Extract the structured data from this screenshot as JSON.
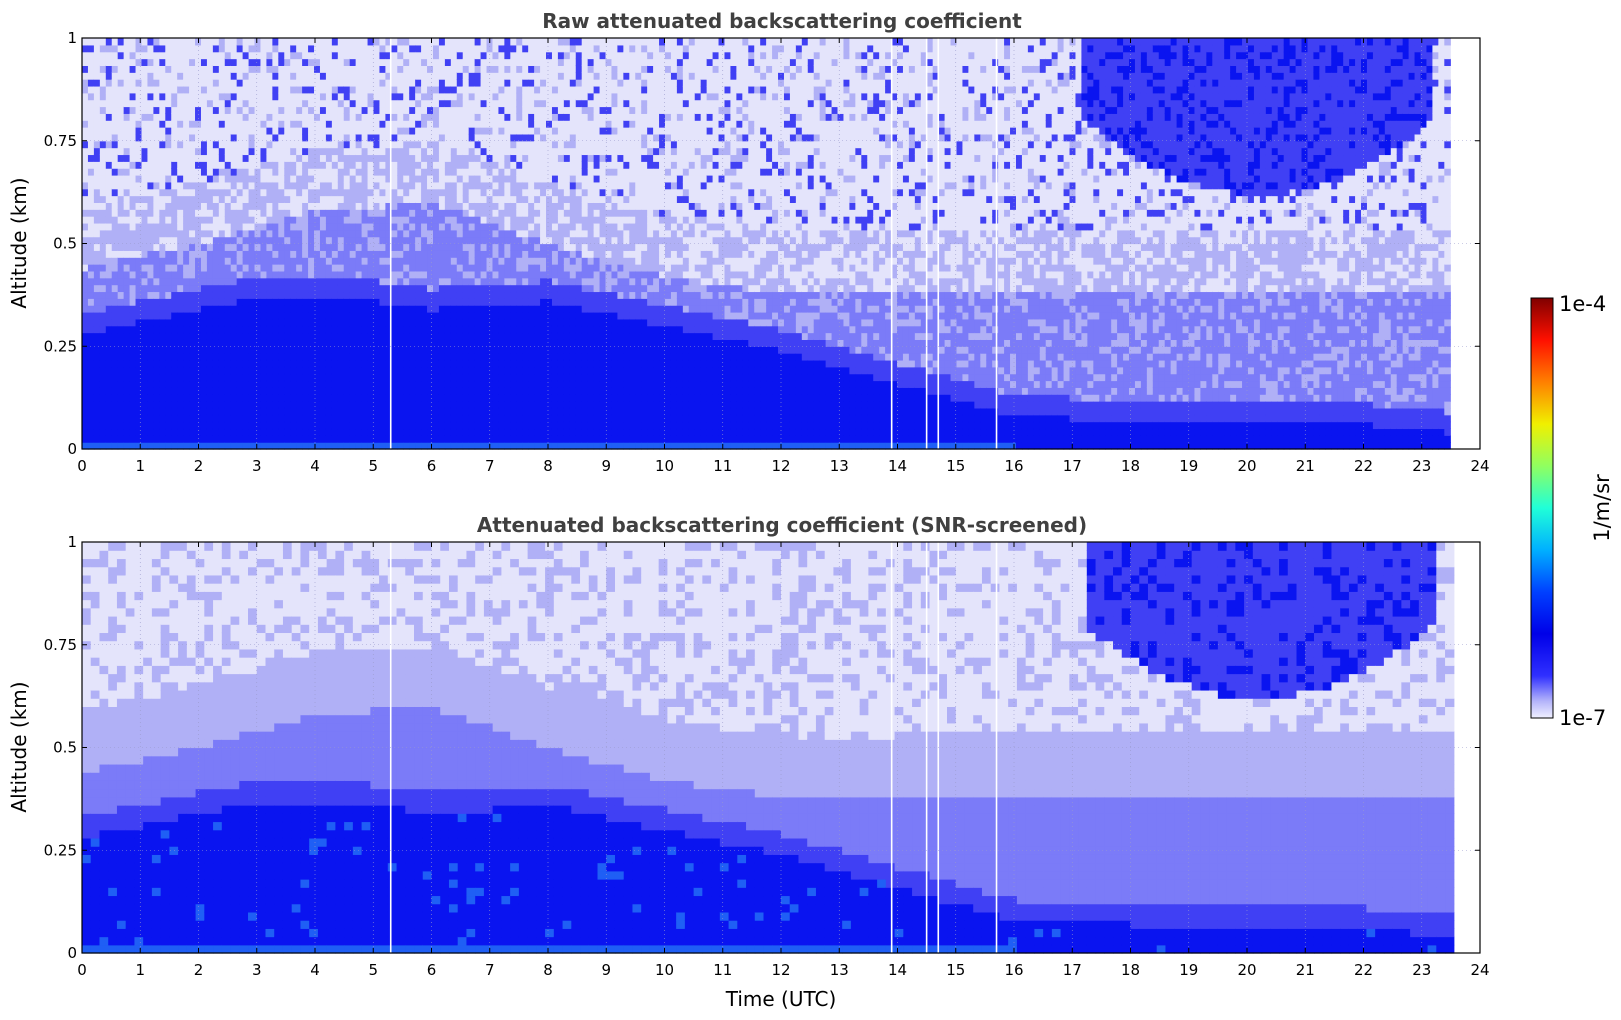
{
  "chart_data": [
    {
      "type": "heatmap",
      "title": "Raw attenuated backscattering coefficient",
      "xlabel": "",
      "ylabel": "Altitude (km)",
      "xlim": [
        0,
        24
      ],
      "ylim": [
        0,
        1
      ],
      "xticks": [
        "0",
        "1",
        "2",
        "3",
        "4",
        "5",
        "6",
        "7",
        "8",
        "9",
        "10",
        "11",
        "12",
        "13",
        "14",
        "15",
        "16",
        "17",
        "18",
        "19",
        "20",
        "21",
        "22",
        "23",
        "24"
      ],
      "yticks": [
        "0",
        "0.25",
        "0.5",
        "0.75",
        "1"
      ],
      "data_end_time": 23.5,
      "gap_times": [
        5.3,
        13.9,
        14.5,
        14.7,
        15.7
      ],
      "boundary_layer_top_km": [
        [
          0,
          0.28
        ],
        [
          3,
          0.37
        ],
        [
          5,
          0.36
        ],
        [
          6,
          0.34
        ],
        [
          8,
          0.36
        ],
        [
          10,
          0.3
        ],
        [
          12,
          0.24
        ],
        [
          14,
          0.16
        ],
        [
          16,
          0.08
        ],
        [
          18,
          0.07
        ],
        [
          20,
          0.07
        ],
        [
          22,
          0.06
        ],
        [
          23.5,
          0.04
        ]
      ],
      "residual_layer_top_km": [
        [
          0,
          0.44
        ],
        [
          2,
          0.5
        ],
        [
          4,
          0.58
        ],
        [
          6,
          0.6
        ],
        [
          8,
          0.5
        ],
        [
          10,
          0.42
        ],
        [
          12,
          0.38
        ],
        [
          14,
          0.38
        ],
        [
          16,
          0.39
        ],
        [
          20,
          0.39
        ],
        [
          23.5,
          0.38
        ]
      ],
      "cloud": {
        "t_start": 17.2,
        "t_end": 23.2,
        "base_km": 0.62,
        "top_km": 1.0
      },
      "grid": true
    },
    {
      "type": "heatmap",
      "title": "Attenuated backscattering coefficient (SNR-screened)",
      "xlabel": "Time (UTC)",
      "ylabel": "Altitude (km)",
      "xlim": [
        0,
        24
      ],
      "ylim": [
        0,
        1
      ],
      "xticks": [
        "0",
        "1",
        "2",
        "3",
        "4",
        "5",
        "6",
        "7",
        "8",
        "9",
        "10",
        "11",
        "12",
        "13",
        "14",
        "15",
        "16",
        "17",
        "18",
        "19",
        "20",
        "21",
        "22",
        "23",
        "24"
      ],
      "yticks": [
        "0",
        "0.25",
        "0.5",
        "0.75",
        "1"
      ],
      "data_end_time": 23.5,
      "gap_times": [
        5.3,
        13.9,
        14.5,
        14.7,
        15.7
      ],
      "grid": true
    }
  ],
  "colorbar": {
    "label": "1/m/sr",
    "min_label": "1e-7",
    "max_label": "1e-4",
    "colormap": "jet",
    "scale": "log",
    "range": [
      1e-07,
      0.0001
    ]
  },
  "colors": {
    "light": "#e4e4fb",
    "pale": "#b0b0f6",
    "mid": "#7b7bf8",
    "strong": "#4040f4",
    "dense": "#0a14f0",
    "bright": "#1f5ff5"
  }
}
